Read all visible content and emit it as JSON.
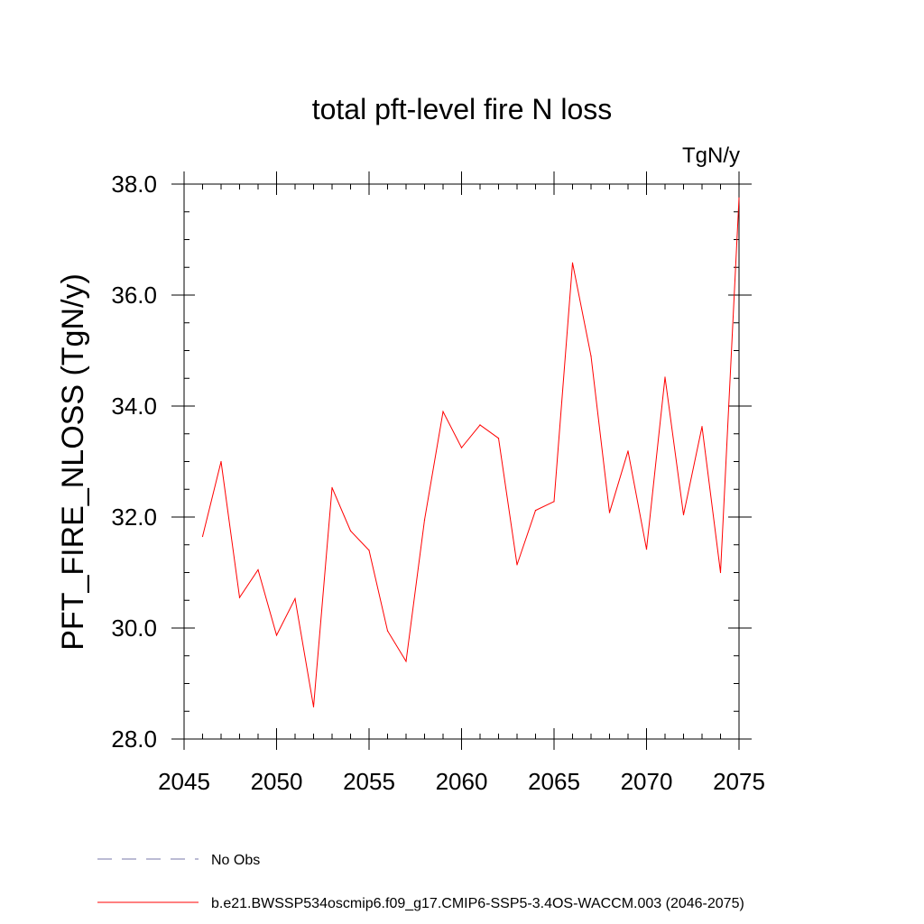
{
  "chart_data": {
    "type": "line",
    "title": "total pft-level fire N loss",
    "units": "TgN/y",
    "ylabel": "PFT_FIRE_NLOSS  (TgN/y)",
    "xlabel": "",
    "xlim": [
      2045,
      2075
    ],
    "ylim": [
      28.0,
      38.0
    ],
    "xticks": [
      2045,
      2050,
      2055,
      2060,
      2065,
      2070,
      2075
    ],
    "yticks": [
      "28.0",
      "30.0",
      "32.0",
      "34.0",
      "36.0",
      "38.0"
    ],
    "x": [
      2046,
      2047,
      2048,
      2049,
      2050,
      2051,
      2052,
      2053,
      2054,
      2055,
      2056,
      2057,
      2058,
      2059,
      2060,
      2061,
      2062,
      2063,
      2064,
      2065,
      2066,
      2067,
      2068,
      2069,
      2070,
      2071,
      2072,
      2073,
      2074,
      2075
    ],
    "series": [
      {
        "name": "b.e21.BWSSP534oscmip6.f09_g17.CMIP6-SSP5-3.4OS-WACCM.003 (2046-2075)",
        "color": "#ff0000",
        "values": [
          31.65,
          33.0,
          30.55,
          31.05,
          29.87,
          30.53,
          28.58,
          32.53,
          31.75,
          31.4,
          29.95,
          29.4,
          31.95,
          33.9,
          33.25,
          33.66,
          33.42,
          31.14,
          32.12,
          32.28,
          36.58,
          34.9,
          32.08,
          33.19,
          31.42,
          34.52,
          32.04,
          33.63,
          31.0,
          37.75
        ]
      }
    ],
    "legend": {
      "placement": "bottom-left",
      "entries": [
        {
          "label": "No Obs",
          "color": "#7777aa",
          "style": "dashed"
        },
        {
          "label": "b.e21.BWSSP534oscmip6.f09_g17.CMIP6-SSP5-3.4OS-WACCM.003 (2046-2075)",
          "color": "#ff0000",
          "style": "solid"
        }
      ]
    },
    "grid": false
  }
}
